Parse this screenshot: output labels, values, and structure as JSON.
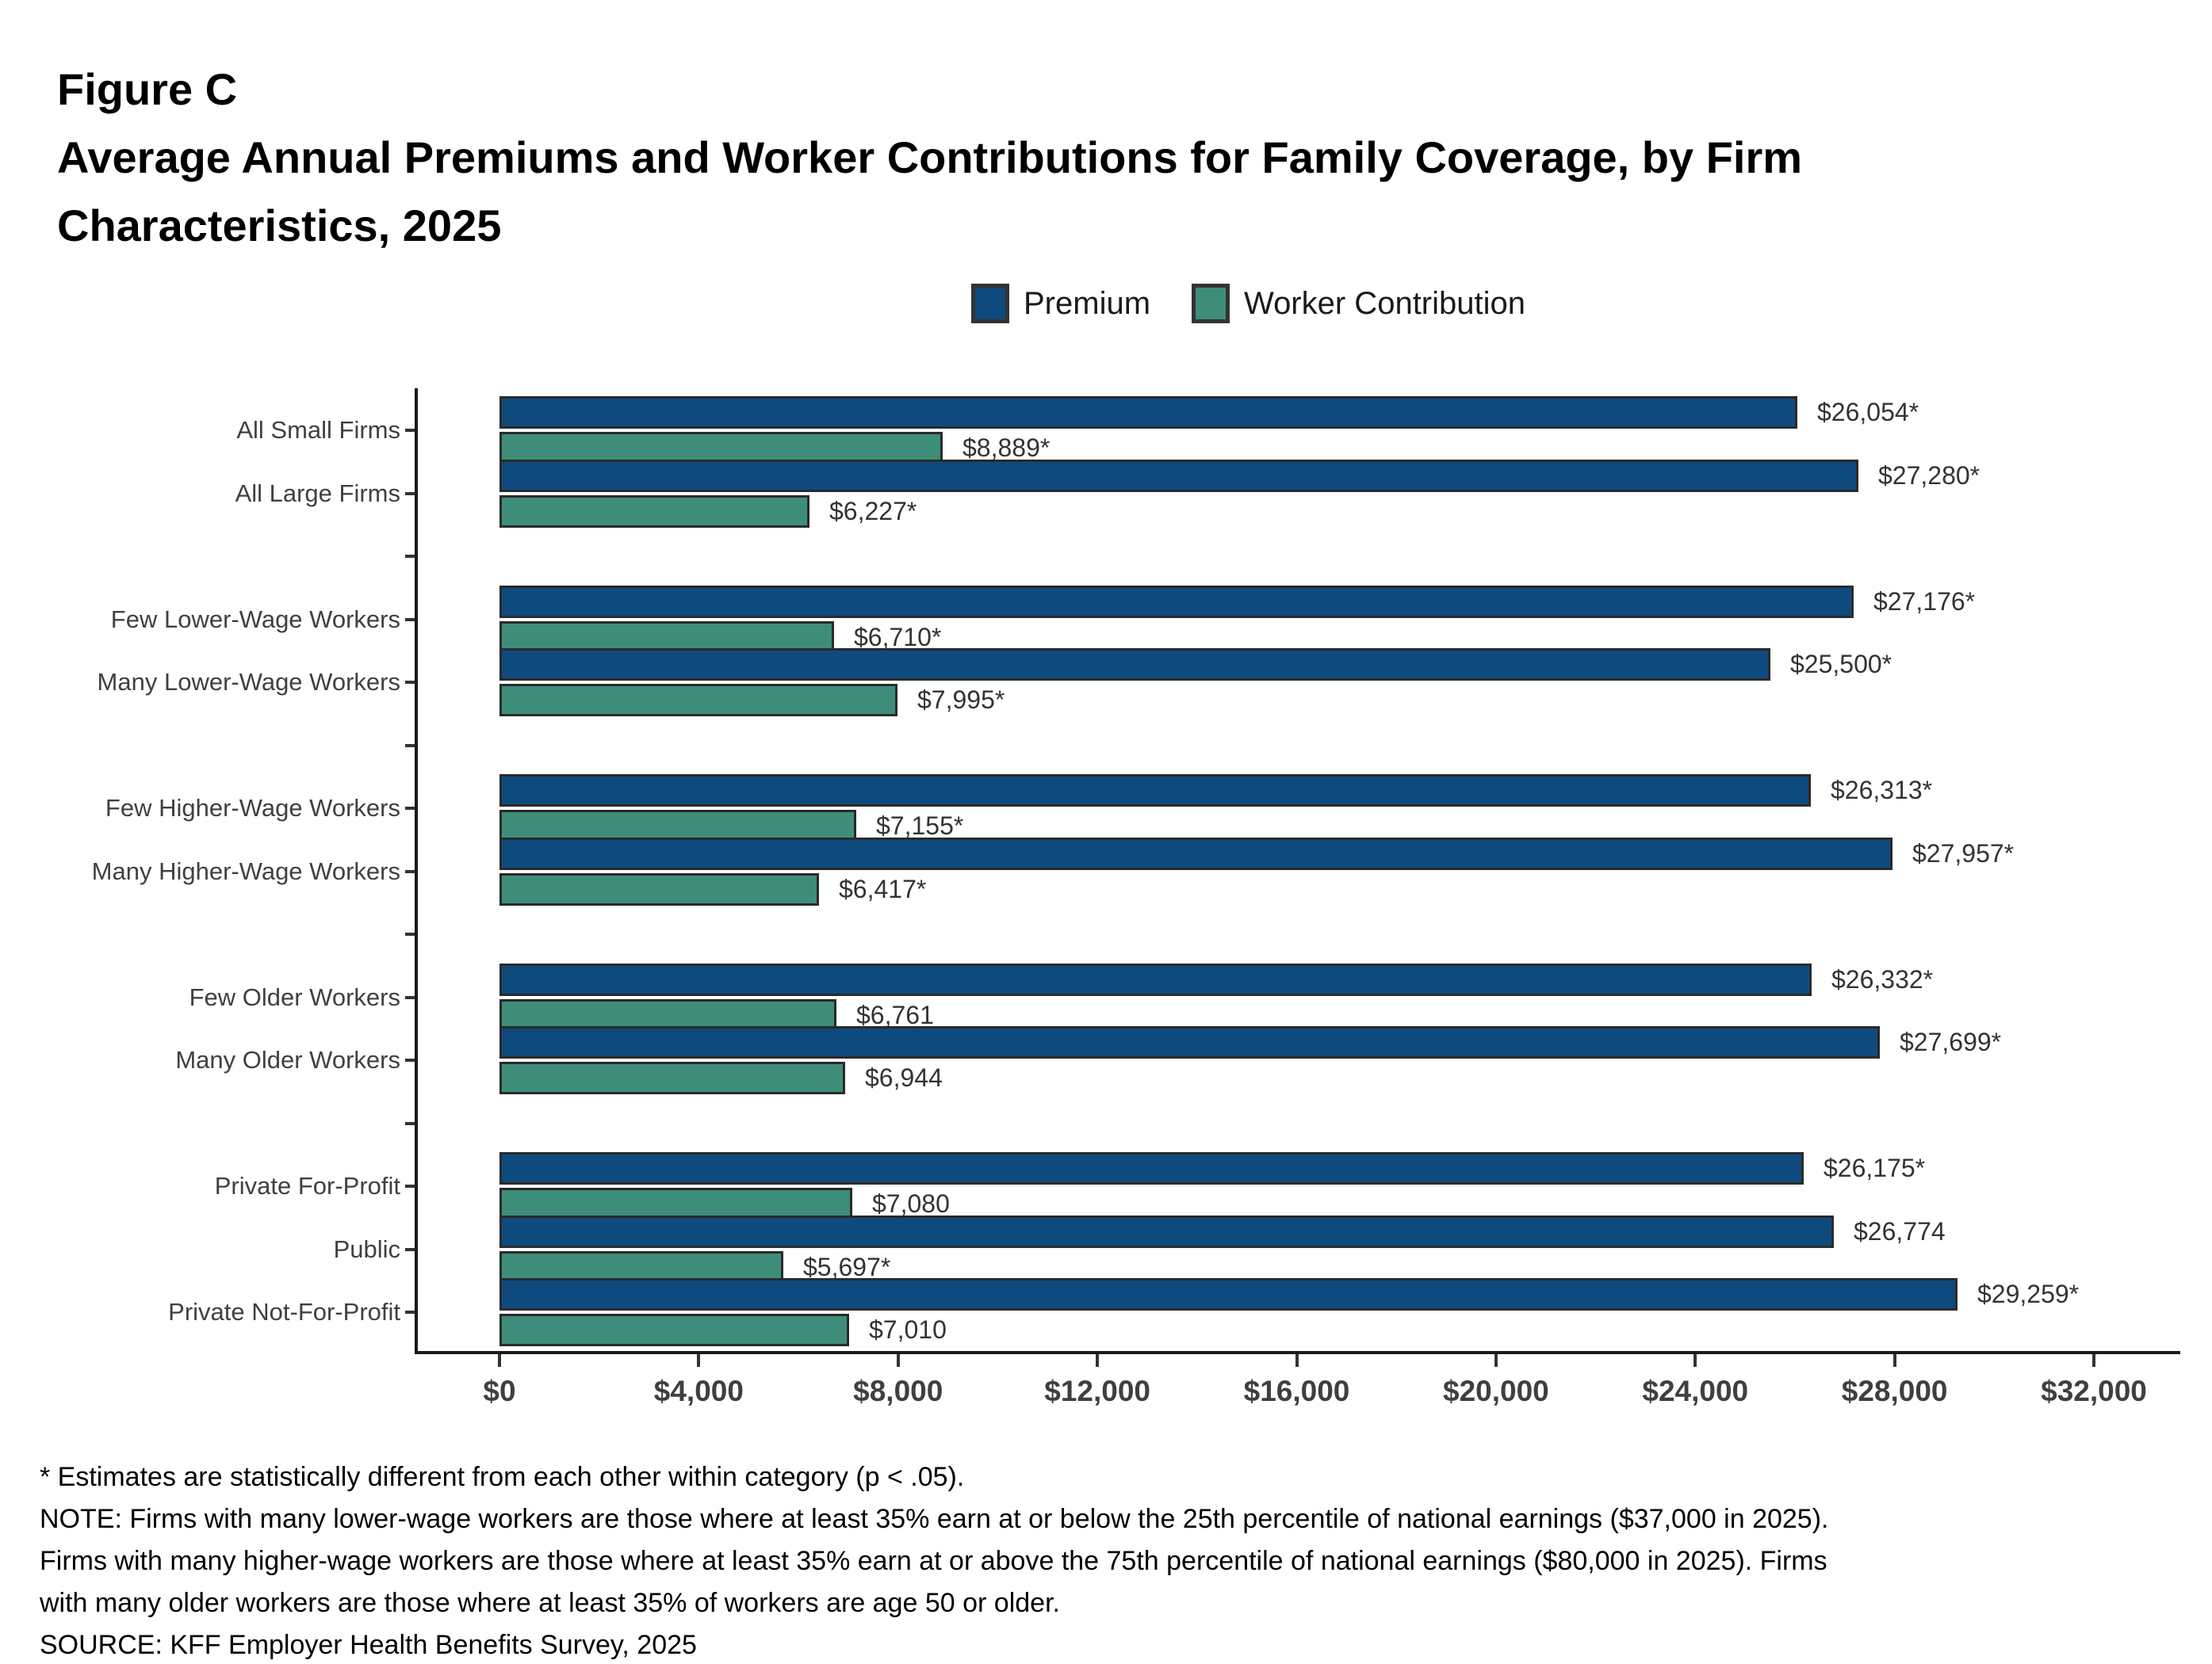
{
  "figure_label": "Figure C",
  "title_lines": [
    "Average Annual Premiums and Worker Contributions for Family Coverage, by Firm",
    "Characteristics, 2025"
  ],
  "chart_data": {
    "type": "bar",
    "orientation": "horizontal",
    "title": "Average Annual Premiums and Worker Contributions for Family Coverage, by Firm Characteristics, 2025",
    "legend_position": "top",
    "legend": [
      {
        "label": "Premium",
        "color": "#0F4A7E"
      },
      {
        "label": "Worker Contribution",
        "color": "#3E8D7B"
      }
    ],
    "bar_border_color": "#2A2A2A",
    "x_axis": {
      "min": 0,
      "max": 32000,
      "ticks": [
        {
          "value": 0,
          "label": "$0"
        },
        {
          "value": 4000,
          "label": "$4,000"
        },
        {
          "value": 8000,
          "label": "$8,000"
        },
        {
          "value": 12000,
          "label": "$12,000"
        },
        {
          "value": 16000,
          "label": "$16,000"
        },
        {
          "value": 20000,
          "label": "$20,000"
        },
        {
          "value": 24000,
          "label": "$24,000"
        },
        {
          "value": 28000,
          "label": "$28,000"
        },
        {
          "value": 32000,
          "label": "$32,000"
        }
      ]
    },
    "groups": [
      {
        "categories": [
          {
            "label": "All Small Firms",
            "premium_value": 26054,
            "premium_label": "$26,054*",
            "worker_value": 8889,
            "worker_label": "$8,889*"
          },
          {
            "label": "All Large Firms",
            "premium_value": 27280,
            "premium_label": "$27,280*",
            "worker_value": 6227,
            "worker_label": "$6,227*"
          }
        ]
      },
      {
        "categories": [
          {
            "label": "Few Lower-Wage Workers",
            "premium_value": 27176,
            "premium_label": "$27,176*",
            "worker_value": 6710,
            "worker_label": "$6,710*"
          },
          {
            "label": "Many Lower-Wage Workers",
            "premium_value": 25500,
            "premium_label": "$25,500*",
            "worker_value": 7995,
            "worker_label": "$7,995*"
          }
        ]
      },
      {
        "categories": [
          {
            "label": "Few Higher-Wage Workers",
            "premium_value": 26313,
            "premium_label": "$26,313*",
            "worker_value": 7155,
            "worker_label": "$7,155*"
          },
          {
            "label": "Many Higher-Wage Workers",
            "premium_value": 27957,
            "premium_label": "$27,957*",
            "worker_value": 6417,
            "worker_label": "$6,417*"
          }
        ]
      },
      {
        "categories": [
          {
            "label": "Few Older Workers",
            "premium_value": 26332,
            "premium_label": "$26,332*",
            "worker_value": 6761,
            "worker_label": "$6,761"
          },
          {
            "label": "Many Older Workers",
            "premium_value": 27699,
            "premium_label": "$27,699*",
            "worker_value": 6944,
            "worker_label": "$6,944"
          }
        ]
      },
      {
        "categories": [
          {
            "label": "Private For-Profit",
            "premium_value": 26175,
            "premium_label": "$26,175*",
            "worker_value": 7080,
            "worker_label": "$7,080"
          },
          {
            "label": "Public",
            "premium_value": 26774,
            "premium_label": "$26,774",
            "worker_value": 5697,
            "worker_label": "$5,697*"
          },
          {
            "label": "Private Not-For-Profit",
            "premium_value": 29259,
            "premium_label": "$29,259*",
            "worker_value": 7010,
            "worker_label": "$7,010"
          }
        ]
      }
    ]
  },
  "footnotes": [
    "* Estimates are statistically different from each other within category (p < .05).",
    "NOTE: Firms with many lower-wage workers are those where at least 35% earn at or below the 25th percentile of national earnings ($37,000 in 2025).",
    "Firms with many higher-wage workers are those where at least 35% earn at or above the 75th percentile of national earnings ($80,000 in 2025). Firms",
    "with many older workers are those where at least 35% of workers are age 50 or older.",
    "SOURCE: KFF Employer Health Benefits Survey, 2025"
  ]
}
